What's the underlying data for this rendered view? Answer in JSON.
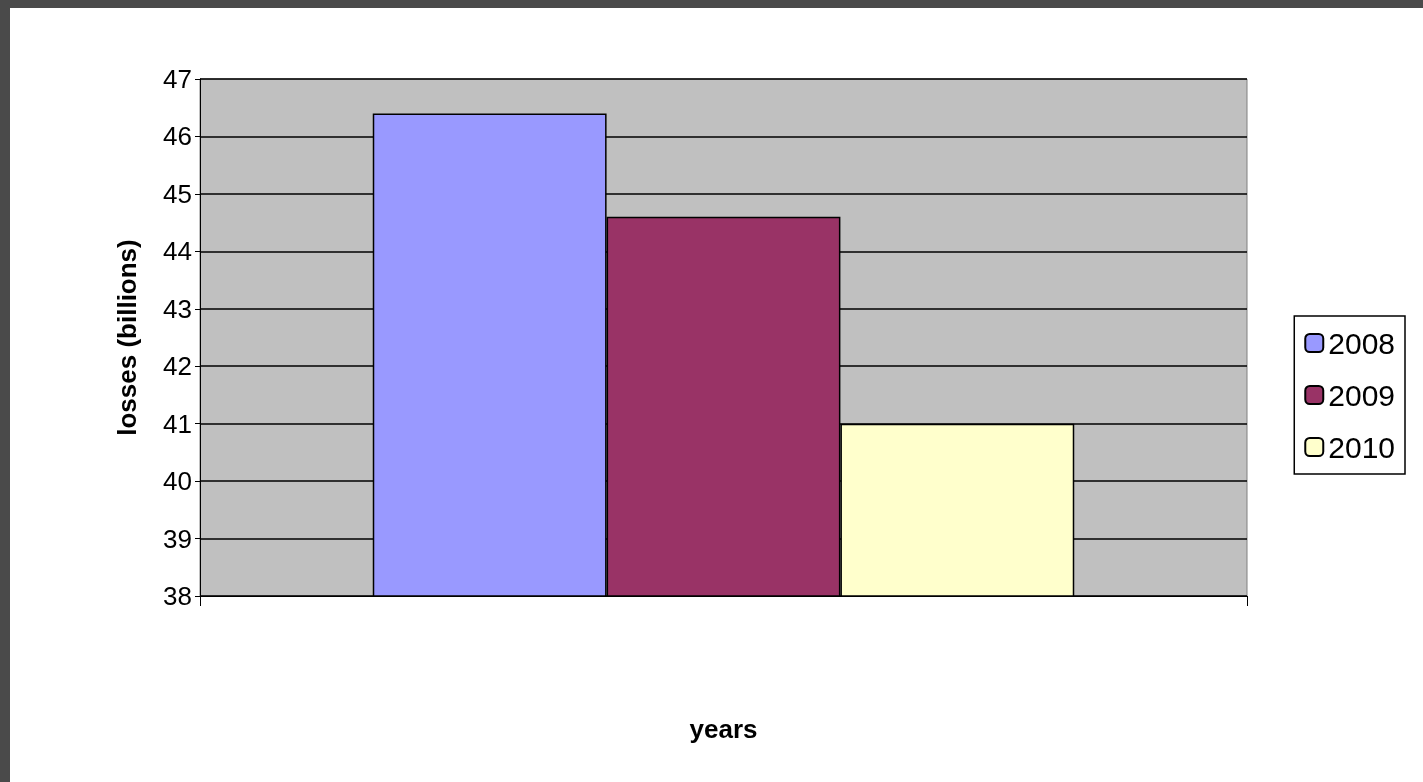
{
  "chart_data": {
    "type": "bar",
    "xlabel": "years",
    "ylabel": "losses (billions)",
    "categories": [
      null
    ],
    "series": [
      {
        "name": "2008",
        "color": "#9999ff",
        "values": [
          46.4
        ]
      },
      {
        "name": "2009",
        "color": "#993366",
        "values": [
          44.6
        ]
      },
      {
        "name": "2010",
        "color": "#ffffcc",
        "values": [
          41.0
        ]
      }
    ],
    "ylim": [
      38,
      47
    ],
    "yticks": [
      38,
      39,
      40,
      41,
      42,
      43,
      44,
      45,
      46,
      47
    ],
    "grid": "y",
    "legend": "right"
  }
}
